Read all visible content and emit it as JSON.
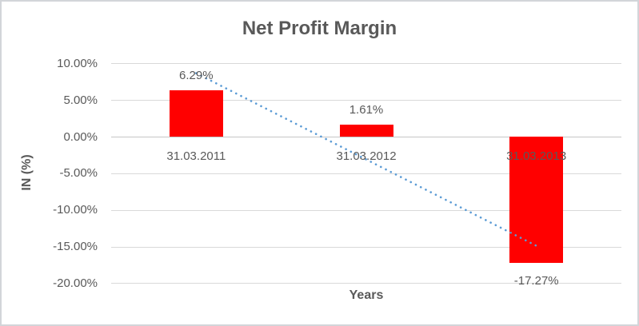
{
  "chart_data": {
    "type": "bar",
    "title": "Net Profit Margin",
    "xlabel": "Years",
    "ylabel": "IN (%)",
    "categories": [
      "31.03.2011",
      "31.03.2012",
      "31.03.2013"
    ],
    "values": [
      6.29,
      1.61,
      -17.27
    ],
    "data_labels": [
      "6.29%",
      "1.61%",
      "-17.27%"
    ],
    "y_ticks": [
      "10.00%",
      "5.00%",
      "0.00%",
      "-5.00%",
      "-10.00%",
      "-15.00%",
      "-20.00%"
    ],
    "y_tick_values": [
      10,
      5,
      0,
      -5,
      -10,
      -15,
      -20
    ],
    "ylim": [
      -20,
      10
    ],
    "grid": true,
    "legend_position": "none",
    "trendline": {
      "type": "linear",
      "style": "dotted"
    },
    "colors": {
      "bar": "#FF0000",
      "trendline": "#5B9BD5",
      "text": "#595959",
      "gridline": "#D9D9D9",
      "axis_line": "#C6C6C6",
      "chart_border": "#D2D5D9"
    }
  }
}
